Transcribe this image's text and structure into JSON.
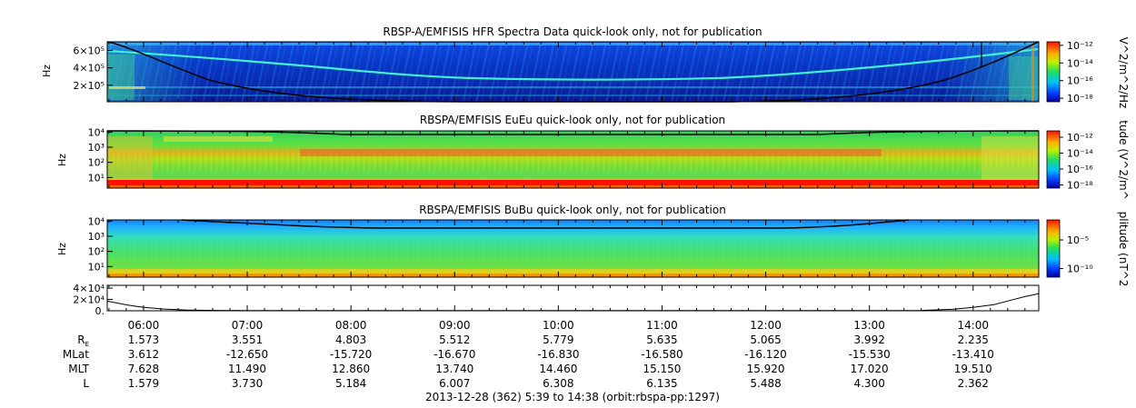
{
  "chart_data": [
    {
      "type": "heatmap",
      "title": "RBSP-A/EMFISIS  HFR Spectra Data quick-look only, not for publication",
      "ylabel": "Hz",
      "yticks": [
        "6×10⁵",
        "4×10⁵",
        "2×10⁵"
      ],
      "ytick_values": [
        600000,
        400000,
        200000
      ],
      "colorbar_label": "V^2/m^2/Hz",
      "colorbar_ticks": [
        "10⁻¹²",
        "10⁻¹⁴",
        "10⁻¹⁶",
        "10⁻¹⁸"
      ],
      "colorbar_tick_exponents": [
        -12,
        -14,
        -16,
        -18
      ],
      "ylim": [
        10000,
        700000
      ],
      "yscale": "linear"
    },
    {
      "type": "heatmap",
      "title": "RBSPA/EMFISIS  EuEu quick-look only, not for publication",
      "ylabel": "Hz",
      "yticks": [
        "10⁴",
        "10³",
        "10²",
        "10¹"
      ],
      "ytick_exponents": [
        4,
        3,
        2,
        1
      ],
      "colorbar_label": "tude (V^2/m^",
      "colorbar_ticks": [
        "10⁻¹²",
        "10⁻¹⁴",
        "10⁻¹⁶",
        "10⁻¹⁸"
      ],
      "colorbar_tick_exponents": [
        -12,
        -14,
        -16,
        -18
      ],
      "yscale": "log",
      "ylim": [
        2,
        12000
      ]
    },
    {
      "type": "heatmap",
      "title": "RBSPA/EMFISIS  BuBu quick-look only, not for publication",
      "ylabel": "Hz",
      "yticks": [
        "10⁴",
        "10³",
        "10²",
        "10¹"
      ],
      "ytick_exponents": [
        4,
        3,
        2,
        1
      ],
      "colorbar_label": "plitude (nT^2",
      "colorbar_ticks": [
        "10⁻⁵",
        "10⁻¹⁰"
      ],
      "colorbar_tick_exponents": [
        -5,
        -10
      ],
      "yscale": "log",
      "ylim": [
        2,
        12000
      ]
    },
    {
      "type": "line",
      "yticks": [
        "4×10⁴",
        "2×10⁴",
        "0."
      ],
      "ytick_values": [
        40000,
        20000,
        0
      ],
      "ylim": [
        0,
        45000
      ],
      "x_hours": [
        5.65,
        5.85,
        6.0,
        6.2,
        6.4,
        6.6,
        7.0,
        8.0,
        9.0,
        10.0,
        11.0,
        12.0,
        13.0,
        13.5,
        13.8,
        14.0,
        14.2,
        14.35,
        14.5,
        14.63
      ],
      "y": [
        17000,
        10000,
        6000,
        3000,
        1500,
        800,
        400,
        400,
        400,
        400,
        400,
        400,
        400,
        600,
        2500,
        6000,
        11000,
        18000,
        25000,
        30000
      ]
    }
  ],
  "time_axis": {
    "start_hour": 5.65,
    "end_hour": 14.633,
    "ticks": [
      "06:00",
      "07:00",
      "08:00",
      "09:00",
      "10:00",
      "11:00",
      "12:00",
      "13:00",
      "14:00"
    ],
    "tick_hours": [
      6,
      7,
      8,
      9,
      10,
      11,
      12,
      13,
      14
    ]
  },
  "ephemeris": {
    "rows": [
      {
        "label": "R",
        "sub": "E",
        "values": [
          "1.573",
          "3.551",
          "4.803",
          "5.512",
          "5.779",
          "5.635",
          "5.065",
          "3.992",
          "2.235"
        ]
      },
      {
        "label": "MLat",
        "sub": "",
        "values": [
          "3.612",
          "-12.650",
          "-15.720",
          "-16.670",
          "-16.830",
          "-16.580",
          "-16.120",
          "-15.530",
          "-13.410"
        ]
      },
      {
        "label": "MLT",
        "sub": "",
        "values": [
          "7.628",
          "11.490",
          "12.860",
          "13.740",
          "14.460",
          "15.150",
          "15.920",
          "17.020",
          "19.510"
        ]
      },
      {
        "label": "L",
        "sub": "",
        "values": [
          "1.579",
          "3.730",
          "5.184",
          "6.007",
          "6.308",
          "6.135",
          "5.488",
          "4.300",
          "2.362"
        ]
      }
    ]
  },
  "footer": "2013-12-28 (362) 5:39 to 14:38 (orbit:rbspa-pp:1297)"
}
